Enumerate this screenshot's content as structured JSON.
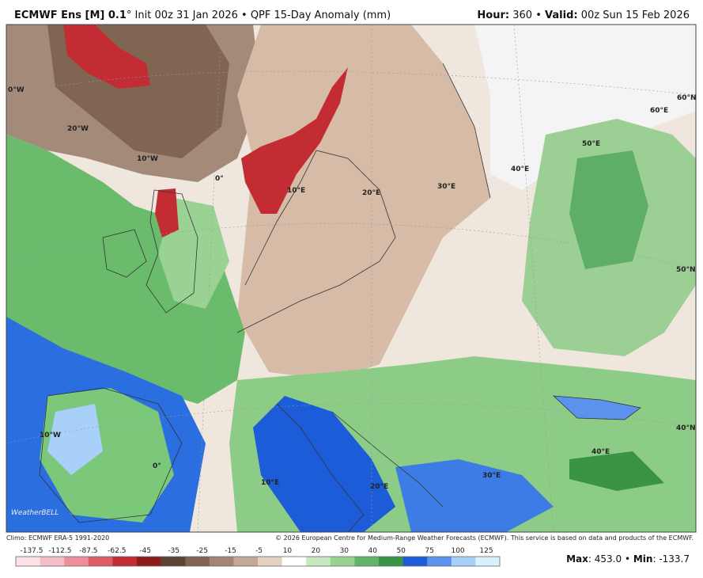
{
  "header": {
    "title": "ECMWF Ens [M] 0.1",
    "resolution_mark": "°",
    "init": "Init 00z 31 Jan 2026",
    "separator": "•",
    "product": "QPF 15-Day Anomaly (mm)",
    "hour_label": "Hour:",
    "hour": "360",
    "valid_label": "Valid:",
    "valid": "00z Sun 15 Feb 2026"
  },
  "map": {
    "grid_labels": [
      "0°W",
      "20°W",
      "10°W",
      "0°",
      "10°E",
      "20°E",
      "30°E",
      "40°E",
      "50°E",
      "60°E",
      "60°N",
      "50°N",
      "40°N",
      "10°W",
      "0°",
      "10°E",
      "20°E",
      "30°E",
      "40°E"
    ],
    "logo": "WeatherBELL"
  },
  "footer": {
    "climo": "Climo: ECMWF ERA-5 1991-2020",
    "copyright": "© 2026 European Centre for Medium-Range Weather Forecasts (ECMWF). This service is based on data and products of the ECMWF."
  },
  "legend": {
    "ticks": [
      -137.5,
      -112.5,
      -87.5,
      -62.5,
      -45,
      -35,
      -25,
      -15,
      -5,
      10,
      20,
      30,
      40,
      50,
      75,
      100,
      125
    ],
    "colors": [
      "#fbe3e8",
      "#f4bcc6",
      "#ec8e9c",
      "#dc5c68",
      "#c42c34",
      "#8c1c1c",
      "#5c4234",
      "#80644f",
      "#a38672",
      "#c4aa94",
      "#e2d0c0",
      "#ffffff",
      "#c8e8c0",
      "#98d490",
      "#64b468",
      "#3a9446",
      "#1c5cd8",
      "#5a92ee",
      "#a8d0f8",
      "#d8f2fc"
    ]
  },
  "stats": {
    "max_label": "Max",
    "max": "453.0",
    "separator": "•",
    "min_label": "Min",
    "min": "-133.7"
  }
}
